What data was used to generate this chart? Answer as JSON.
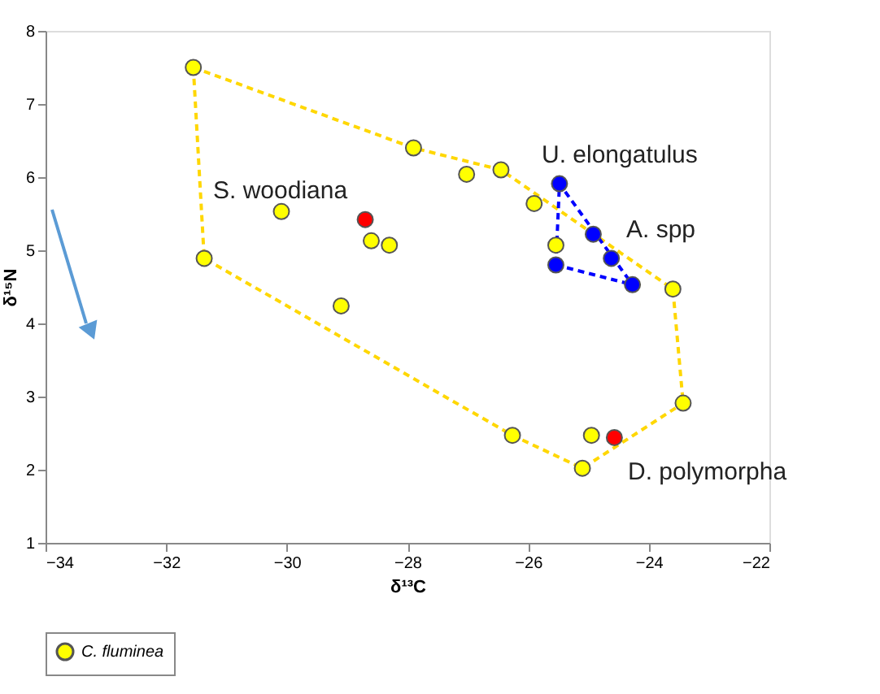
{
  "chart_data": {
    "type": "scatter",
    "xlabel": "δ¹³C",
    "ylabel": "δ¹⁵N",
    "xlim": [
      -34,
      -22
    ],
    "xticks": [
      -34,
      -32,
      -30,
      -28,
      -26,
      -24,
      -22
    ],
    "ylim": [
      1,
      8
    ],
    "yticks": [
      1,
      2,
      3,
      4,
      5,
      6,
      7,
      8
    ],
    "grid": false,
    "legend": "bottom",
    "series": [
      {
        "name": "C. fluminea",
        "color": "#ffff00",
        "marker": "circle",
        "x": [
          -31.55,
          -31.37,
          -30.09,
          -27.9,
          -27.02,
          -26.45,
          -25.9,
          -25.54,
          -28.6,
          -28.3,
          -29.1,
          -23.6,
          -23.43,
          -26.26,
          -25.1,
          -24.95
        ],
        "values": [
          7.5,
          4.89,
          5.53,
          6.4,
          6.04,
          6.1,
          5.64,
          5.07,
          5.13,
          5.07,
          4.24,
          4.47,
          2.91,
          2.47,
          2.02,
          2.47
        ]
      },
      {
        "color": "#ff0000",
        "marker": "circle",
        "x": [
          -28.7,
          -24.57
        ],
        "values": [
          5.42,
          2.44
        ]
      },
      {
        "color": "#0000ff",
        "marker": "circle",
        "x": [
          -25.48,
          -24.92,
          -24.62,
          -24.27,
          -25.54
        ],
        "values": [
          5.91,
          5.22,
          4.89,
          4.53,
          4.8
        ]
      },
      {
        "color": "#ffd700",
        "type": "line",
        "line_style": "dashed",
        "x": [
          -31.55,
          -27.9,
          -26.45,
          -23.6,
          -23.43
        ],
        "values": [
          7.5,
          6.4,
          6.1,
          4.47,
          2.91
        ]
      },
      {
        "color": "#ffd700",
        "type": "line",
        "line_style": "dashed",
        "x": [
          -31.55,
          -31.37,
          -26.26,
          -25.1,
          -23.43
        ],
        "values": [
          7.5,
          4.89,
          2.47,
          2.02,
          2.91
        ]
      },
      {
        "color": "#0000ff",
        "type": "line",
        "line_style": "dashed",
        "x": [
          -25.54,
          -25.48,
          -24.27
        ],
        "values": [
          4.8,
          5.91,
          4.53
        ]
      },
      {
        "color": "#0000ff",
        "type": "line",
        "line_style": "dashed",
        "x": [
          -25.54,
          -24.27
        ],
        "values": [
          4.8,
          4.53
        ]
      }
    ],
    "annotations": [
      "S. woodiana",
      "U. elongatulus",
      "A. spp",
      "D. polymorpha"
    ]
  }
}
